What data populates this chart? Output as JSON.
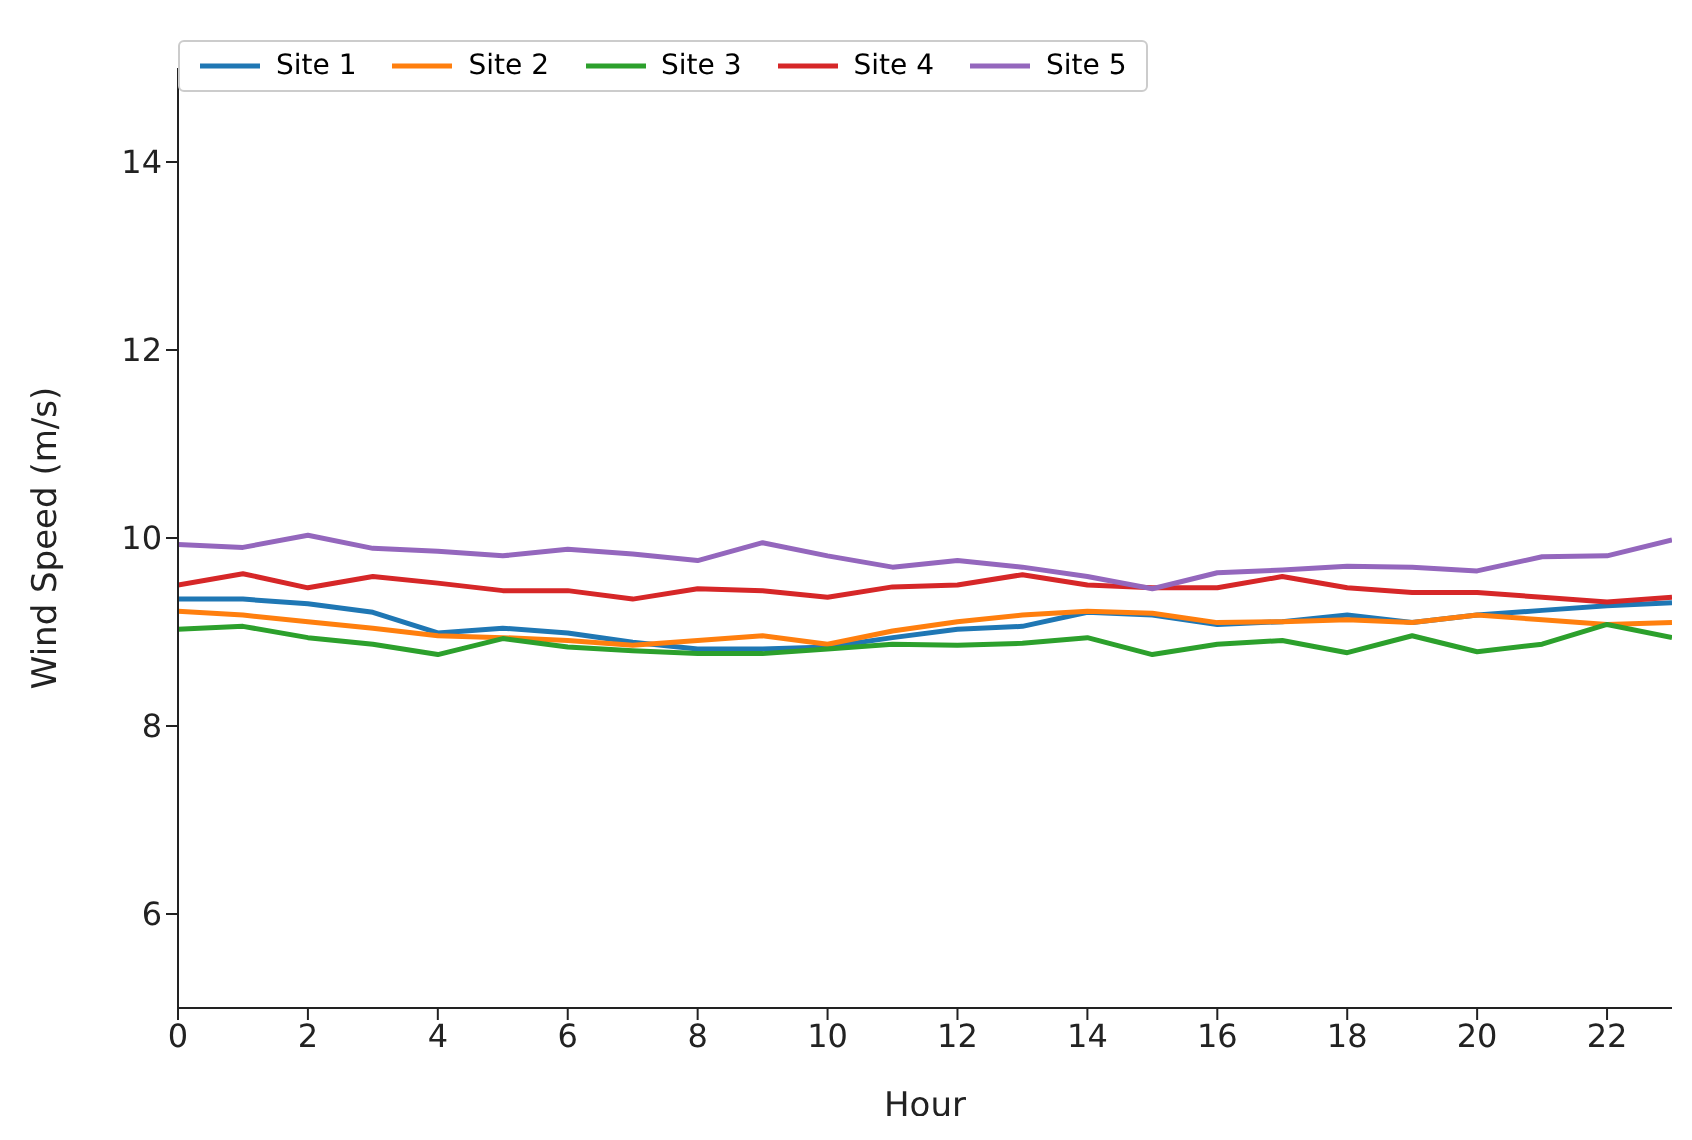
{
  "chart_data": {
    "type": "line",
    "xlabel": "Hour",
    "ylabel": "Wind Speed (m/s)",
    "x": [
      0,
      1,
      2,
      3,
      4,
      5,
      6,
      7,
      8,
      9,
      10,
      11,
      12,
      13,
      14,
      15,
      16,
      17,
      18,
      19,
      20,
      21,
      22,
      23
    ],
    "xlim": [
      0,
      23
    ],
    "xticks": [
      0,
      2,
      4,
      6,
      8,
      10,
      12,
      14,
      16,
      18,
      20,
      22
    ],
    "ylim": [
      5,
      15
    ],
    "yticks": [
      6,
      8,
      10,
      12,
      14
    ],
    "legend": "top",
    "grid": false,
    "marker": "none",
    "line_style": "solid",
    "series": [
      {
        "name": "Site 1",
        "color": "#1f77b4",
        "values": [
          9.35,
          9.35,
          9.3,
          9.21,
          8.99,
          9.04,
          8.99,
          8.89,
          8.82,
          8.82,
          8.84,
          8.94,
          9.03,
          9.06,
          9.21,
          9.18,
          9.08,
          9.11,
          9.18,
          9.1,
          9.18,
          9.23,
          9.28,
          9.31
        ]
      },
      {
        "name": "Site 2",
        "color": "#ff7f0e",
        "values": [
          9.22,
          9.18,
          9.11,
          9.04,
          8.96,
          8.94,
          8.91,
          8.86,
          8.91,
          8.96,
          8.87,
          9.01,
          9.11,
          9.18,
          9.22,
          9.2,
          9.1,
          9.11,
          9.13,
          9.1,
          9.18,
          9.13,
          9.08,
          9.1
        ]
      },
      {
        "name": "Site 3",
        "color": "#2ca02c",
        "values": [
          9.03,
          9.06,
          8.94,
          8.87,
          8.76,
          8.93,
          8.84,
          8.8,
          8.77,
          8.77,
          8.82,
          8.87,
          8.86,
          8.88,
          8.94,
          8.76,
          8.87,
          8.91,
          8.78,
          8.96,
          8.79,
          8.87,
          9.08,
          8.94
        ]
      },
      {
        "name": "Site 4",
        "color": "#d62728",
        "values": [
          9.5,
          9.62,
          9.47,
          9.59,
          9.52,
          9.44,
          9.44,
          9.35,
          9.46,
          9.44,
          9.37,
          9.48,
          9.5,
          9.61,
          9.5,
          9.47,
          9.47,
          9.59,
          9.47,
          9.42,
          9.42,
          9.37,
          9.32,
          9.37
        ]
      },
      {
        "name": "Site 5",
        "color": "#9467bd",
        "values": [
          9.93,
          9.9,
          10.03,
          9.89,
          9.86,
          9.81,
          9.88,
          9.83,
          9.76,
          9.95,
          9.81,
          9.69,
          9.76,
          9.69,
          9.59,
          9.46,
          9.63,
          9.66,
          9.7,
          9.69,
          9.65,
          9.8,
          9.81,
          9.98
        ]
      }
    ]
  }
}
